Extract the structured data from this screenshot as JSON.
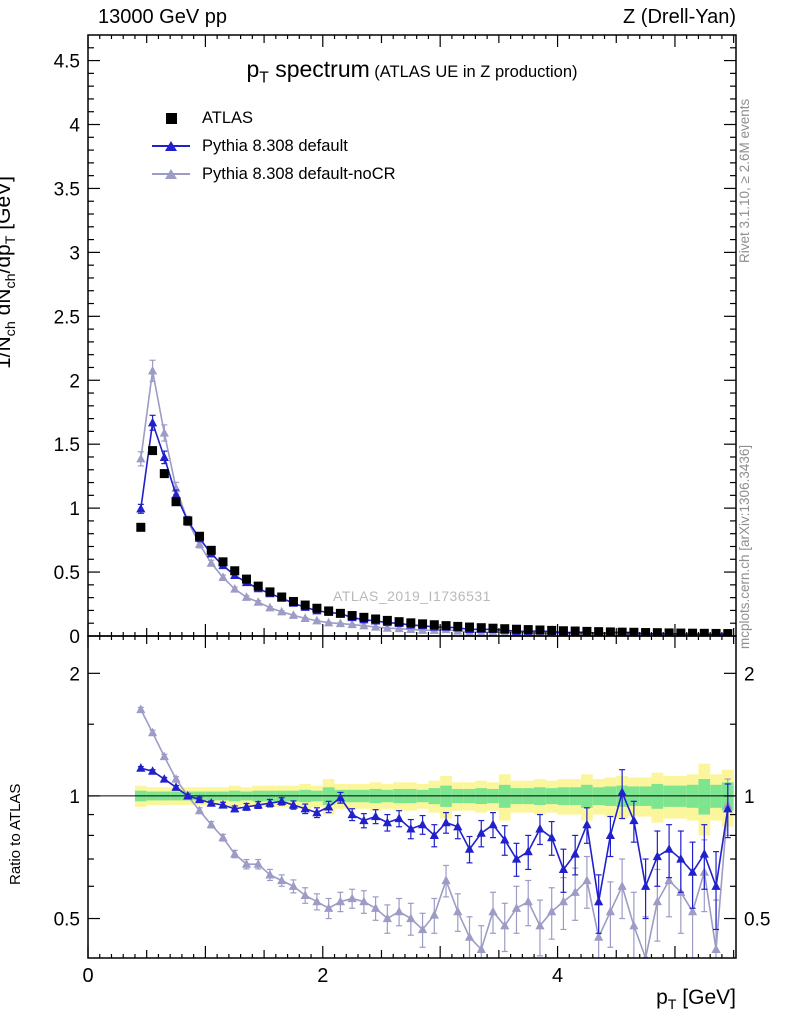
{
  "header": {
    "left": "13000 GeV pp",
    "right": "Z (Drell-Yan)"
  },
  "plot": {
    "title": "p_{T} spectrum",
    "subtitle": "(ATLAS UE in Z production)",
    "watermark": "ATLAS_2019_I1736531",
    "ylabel_main": "1/N_{ch} dN_{ch}/dp_{T} [GeV]",
    "ylabel_ratio": "Ratio to ATLAS",
    "xlabel": "p_{T} [GeV]",
    "side_top": "Rivet 3.1.10, ≥ 2.6M events",
    "side_bottom": "mcplots.cern.ch [arXiv:1306.3436]"
  },
  "legend": [
    {
      "label": "ATLAS",
      "marker": "square",
      "color": "#000000",
      "line": false
    },
    {
      "label": "Pythia 8.308 default",
      "marker": "triangle",
      "color": "#2020cc",
      "line": true
    },
    {
      "label": "Pythia 8.308 default-noCR",
      "marker": "triangle",
      "color": "#9c9cc6",
      "line": true
    }
  ],
  "chart_data": {
    "type": "line",
    "title": "p_T spectrum (ATLAS UE in Z production)",
    "xlabel": "p_T [GeV]",
    "ylabel": "1/N_ch dN_ch/dp_T [GeV]",
    "ratio_label": "Ratio to ATLAS",
    "bin_width": 0.1,
    "x": [
      0.45,
      0.55,
      0.65,
      0.75,
      0.85,
      0.95,
      1.05,
      1.15,
      1.25,
      1.35,
      1.45,
      1.55,
      1.65,
      1.75,
      1.85,
      1.95,
      2.05,
      2.15,
      2.25,
      2.35,
      2.45,
      2.55,
      2.65,
      2.75,
      2.85,
      2.95,
      3.05,
      3.15,
      3.25,
      3.35,
      3.45,
      3.55,
      3.65,
      3.75,
      3.85,
      3.95,
      4.05,
      4.15,
      4.25,
      4.35,
      4.45,
      4.55,
      4.65,
      4.75,
      4.85,
      4.95,
      5.05,
      5.15,
      5.25,
      5.35,
      5.45
    ],
    "series": [
      {
        "name": "ATLAS",
        "marker": "square",
        "color": "#000000",
        "y": [
          0.85,
          1.45,
          1.27,
          1.05,
          0.9,
          0.78,
          0.67,
          0.58,
          0.51,
          0.445,
          0.39,
          0.345,
          0.305,
          0.27,
          0.242,
          0.217,
          0.196,
          0.177,
          0.16,
          0.146,
          0.133,
          0.122,
          0.112,
          0.103,
          0.095,
          0.088,
          0.081,
          0.075,
          0.07,
          0.065,
          0.061,
          0.057,
          0.053,
          0.05,
          0.047,
          0.044,
          0.041,
          0.039,
          0.036,
          0.034,
          0.032,
          0.03,
          0.029,
          0.027,
          0.026,
          0.024,
          0.023,
          0.022,
          0.021,
          0.02,
          0.019
        ]
      },
      {
        "name": "Pythia 8.308 default",
        "marker": "triangle",
        "color": "#2020cc",
        "yerr_frac": 0.035,
        "ratio": [
          1.17,
          1.15,
          1.1,
          1.05,
          1.0,
          0.98,
          0.96,
          0.95,
          0.93,
          0.94,
          0.95,
          0.96,
          0.97,
          0.95,
          0.93,
          0.91,
          0.94,
          0.99,
          0.9,
          0.87,
          0.89,
          0.86,
          0.88,
          0.83,
          0.85,
          0.8,
          0.86,
          0.84,
          0.74,
          0.81,
          0.85,
          0.78,
          0.7,
          0.73,
          0.83,
          0.79,
          0.66,
          0.72,
          0.85,
          0.55,
          0.8,
          1.02,
          0.87,
          0.6,
          0.71,
          0.74,
          0.7,
          0.65,
          0.72,
          0.6,
          0.93
        ],
        "ratio_err": [
          0.01,
          0.01,
          0.01,
          0.01,
          0.01,
          0.012,
          0.012,
          0.015,
          0.015,
          0.018,
          0.018,
          0.02,
          0.02,
          0.022,
          0.025,
          0.025,
          0.03,
          0.03,
          0.03,
          0.035,
          0.035,
          0.04,
          0.04,
          0.045,
          0.045,
          0.05,
          0.05,
          0.055,
          0.055,
          0.06,
          0.06,
          0.065,
          0.065,
          0.07,
          0.07,
          0.075,
          0.08,
          0.08,
          0.085,
          0.09,
          0.09,
          0.14,
          0.1,
          0.1,
          0.11,
          0.11,
          0.12,
          0.12,
          0.13,
          0.13,
          0.14
        ]
      },
      {
        "name": "Pythia 8.308 default-noCR",
        "marker": "triangle",
        "color": "#9c9cc6",
        "yerr_frac": 0.04,
        "ratio": [
          1.63,
          1.43,
          1.25,
          1.1,
          1.0,
          0.92,
          0.85,
          0.79,
          0.72,
          0.68,
          0.68,
          0.64,
          0.62,
          0.6,
          0.57,
          0.55,
          0.53,
          0.55,
          0.56,
          0.55,
          0.53,
          0.5,
          0.52,
          0.5,
          0.47,
          0.51,
          0.62,
          0.52,
          0.45,
          0.42,
          0.52,
          0.48,
          0.53,
          0.55,
          0.48,
          0.52,
          0.55,
          0.58,
          0.62,
          0.45,
          0.52,
          0.6,
          0.48,
          0.4,
          0.55,
          0.62,
          0.58,
          0.52,
          0.65,
          0.42,
          0.95
        ],
        "ratio_err": [
          0.02,
          0.02,
          0.015,
          0.015,
          0.015,
          0.015,
          0.015,
          0.015,
          0.015,
          0.018,
          0.018,
          0.02,
          0.02,
          0.022,
          0.025,
          0.025,
          0.03,
          0.03,
          0.03,
          0.035,
          0.035,
          0.04,
          0.04,
          0.045,
          0.045,
          0.05,
          0.055,
          0.055,
          0.055,
          0.06,
          0.06,
          0.065,
          0.07,
          0.07,
          0.075,
          0.075,
          0.08,
          0.085,
          0.09,
          0.09,
          0.095,
          0.1,
          0.1,
          0.105,
          0.11,
          0.115,
          0.12,
          0.125,
          0.13,
          0.135,
          0.15
        ]
      }
    ],
    "bands": {
      "yellow_color": "#fbf59b",
      "green_color": "#7de58f",
      "yellow_halfwidth": [
        0.06,
        0.05,
        0.05,
        0.05,
        0.05,
        0.05,
        0.05,
        0.05,
        0.06,
        0.05,
        0.06,
        0.06,
        0.06,
        0.06,
        0.07,
        0.06,
        0.1,
        0.07,
        0.07,
        0.07,
        0.08,
        0.07,
        0.08,
        0.08,
        0.07,
        0.09,
        0.12,
        0.08,
        0.08,
        0.09,
        0.08,
        0.13,
        0.09,
        0.09,
        0.1,
        0.09,
        0.1,
        0.1,
        0.13,
        0.1,
        0.11,
        0.12,
        0.11,
        0.11,
        0.14,
        0.12,
        0.12,
        0.13,
        0.2,
        0.13,
        0.16
      ],
      "green_halfwidth": [
        0.03,
        0.025,
        0.025,
        0.025,
        0.025,
        0.025,
        0.025,
        0.025,
        0.03,
        0.025,
        0.03,
        0.03,
        0.03,
        0.03,
        0.035,
        0.03,
        0.05,
        0.035,
        0.035,
        0.035,
        0.04,
        0.035,
        0.04,
        0.04,
        0.035,
        0.045,
        0.06,
        0.04,
        0.04,
        0.045,
        0.04,
        0.065,
        0.045,
        0.045,
        0.05,
        0.045,
        0.05,
        0.05,
        0.065,
        0.05,
        0.055,
        0.06,
        0.055,
        0.055,
        0.07,
        0.06,
        0.06,
        0.065,
        0.1,
        0.065,
        0.08
      ]
    },
    "axes": {
      "x": {
        "min": 0,
        "max": 5.52,
        "ticks": [
          {
            "v": 0,
            "t": "0"
          },
          {
            "v": 2,
            "t": "2"
          },
          {
            "v": 4,
            "t": "4"
          }
        ]
      },
      "y_main": {
        "min": 0,
        "max": 4.7,
        "ticks": [
          {
            "v": 0,
            "t": "0"
          },
          {
            "v": 0.5,
            "t": "0.5"
          },
          {
            "v": 1,
            "t": "1"
          },
          {
            "v": 1.5,
            "t": "1.5"
          },
          {
            "v": 2,
            "t": "2"
          },
          {
            "v": 2.5,
            "t": "2.5"
          },
          {
            "v": 3,
            "t": "3"
          },
          {
            "v": 3.5,
            "t": "3.5"
          },
          {
            "v": 4,
            "t": "4"
          },
          {
            "v": 4.5,
            "t": "4.5"
          }
        ]
      },
      "y_ratio": {
        "min": 0.4,
        "max": 2.47,
        "scale": "log",
        "ticks": [
          {
            "v": 0.5,
            "t": "0.5"
          },
          {
            "v": 1,
            "t": "1"
          },
          {
            "v": 2,
            "t": "2"
          }
        ],
        "ref_line": 1
      }
    }
  }
}
